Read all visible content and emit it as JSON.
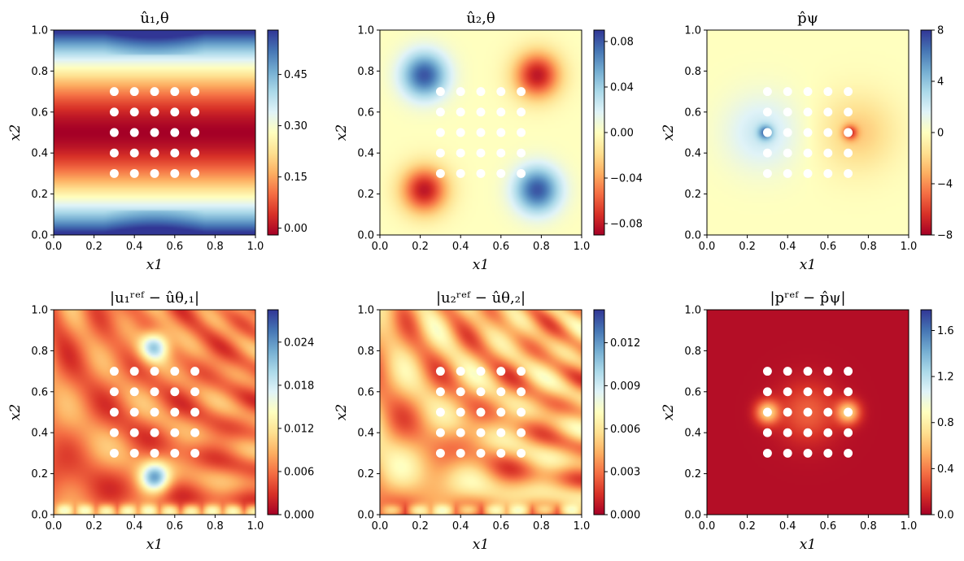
{
  "colors": {
    "colormap": [
      "#a50026",
      "#d73027",
      "#f46d43",
      "#fdae61",
      "#fee090",
      "#ffffbf",
      "#e0f3f8",
      "#abd9e9",
      "#74add1",
      "#4575b4",
      "#313695"
    ],
    "hole": "#ffffff",
    "axis": "#000000"
  },
  "chart_data": [
    {
      "type": "heatmap",
      "field": "u1",
      "title": "û₁,θ",
      "title_html": "<tspan>û</tspan><tspan font-size='12' dy='4'>1, θ</tspan>",
      "xlabel": "x1",
      "ylabel": "x2",
      "xlim": [
        0,
        1
      ],
      "ylim": [
        0,
        1
      ],
      "xticks": [
        "0.0",
        "0.2",
        "0.4",
        "0.6",
        "0.8",
        "1.0"
      ],
      "yticks": [
        "0.0",
        "0.2",
        "0.4",
        "0.6",
        "0.8",
        "1.0"
      ],
      "colorbar": {
        "min": -0.02,
        "max": 0.58,
        "ticks": [
          "0.00",
          "0.15",
          "0.30",
          "0.45"
        ],
        "tick_values": [
          0,
          0.15,
          0.3,
          0.45
        ]
      }
    },
    {
      "type": "heatmap",
      "field": "u2",
      "title": "û₂,θ",
      "xlabel": "x1",
      "ylabel": "x2",
      "xlim": [
        0,
        1
      ],
      "ylim": [
        0,
        1
      ],
      "xticks": [
        "0.0",
        "0.2",
        "0.4",
        "0.6",
        "0.8",
        "1.0"
      ],
      "yticks": [
        "0.0",
        "0.2",
        "0.4",
        "0.6",
        "0.8",
        "1.0"
      ],
      "colorbar": {
        "min": -0.09,
        "max": 0.09,
        "ticks": [
          "−0.08",
          "−0.04",
          "0.00",
          "0.04",
          "0.08"
        ],
        "tick_values": [
          -0.08,
          -0.04,
          0,
          0.04,
          0.08
        ]
      }
    },
    {
      "type": "heatmap",
      "field": "p",
      "title": "p̂ψ",
      "xlabel": "x1",
      "ylabel": "x2",
      "xlim": [
        0,
        1
      ],
      "ylim": [
        0,
        1
      ],
      "xticks": [
        "0.0",
        "0.2",
        "0.4",
        "0.6",
        "0.8",
        "1.0"
      ],
      "yticks": [
        "0.0",
        "0.2",
        "0.4",
        "0.6",
        "0.8",
        "1.0"
      ],
      "colorbar": {
        "min": -8,
        "max": 8,
        "ticks": [
          "−8",
          "−4",
          "0",
          "4",
          "8"
        ],
        "tick_values": [
          -8,
          -4,
          0,
          4,
          8
        ]
      }
    },
    {
      "type": "heatmap",
      "field": "e1",
      "title": "|u₁ʳᵉᶠ − ûθ,₁|",
      "xlabel": "x1",
      "ylabel": "x2",
      "xlim": [
        0,
        1
      ],
      "ylim": [
        0,
        1
      ],
      "xticks": [
        "0.0",
        "0.2",
        "0.4",
        "0.6",
        "0.8",
        "1.0"
      ],
      "yticks": [
        "0.0",
        "0.2",
        "0.4",
        "0.6",
        "0.8",
        "1.0"
      ],
      "colorbar": {
        "min": 0,
        "max": 0.0285,
        "ticks": [
          "0.000",
          "0.006",
          "0.012",
          "0.018",
          "0.024"
        ],
        "tick_values": [
          0,
          0.006,
          0.012,
          0.018,
          0.024
        ]
      }
    },
    {
      "type": "heatmap",
      "field": "e2",
      "title": "|u₂ʳᵉᶠ − ûθ,₂|",
      "xlabel": "x1",
      "ylabel": "x2",
      "xlim": [
        0,
        1
      ],
      "ylim": [
        0,
        1
      ],
      "xticks": [
        "0.0",
        "0.2",
        "0.4",
        "0.6",
        "0.8",
        "1.0"
      ],
      "yticks": [
        "0.0",
        "0.2",
        "0.4",
        "0.6",
        "0.8",
        "1.0"
      ],
      "colorbar": {
        "min": 0,
        "max": 0.0143,
        "ticks": [
          "0.000",
          "0.003",
          "0.006",
          "0.009",
          "0.012"
        ],
        "tick_values": [
          0,
          0.003,
          0.006,
          0.009,
          0.012
        ]
      }
    },
    {
      "type": "heatmap",
      "field": "ep",
      "title": "|pʳᵉᶠ − p̂ψ|",
      "xlabel": "x1",
      "ylabel": "x2",
      "xlim": [
        0,
        1
      ],
      "ylim": [
        0,
        1
      ],
      "xticks": [
        "0.0",
        "0.2",
        "0.4",
        "0.6",
        "0.8",
        "1.0"
      ],
      "yticks": [
        "0.0",
        "0.2",
        "0.4",
        "0.6",
        "0.8",
        "1.0"
      ],
      "colorbar": {
        "min": 0,
        "max": 1.78,
        "ticks": [
          "0.0",
          "0.4",
          "0.8",
          "1.2",
          "1.6"
        ],
        "tick_values": [
          0,
          0.4,
          0.8,
          1.2,
          1.6
        ]
      }
    }
  ],
  "obstacles": {
    "grid_centers": [
      0.3,
      0.4,
      0.5,
      0.6,
      0.7
    ],
    "radius": 0.022
  }
}
